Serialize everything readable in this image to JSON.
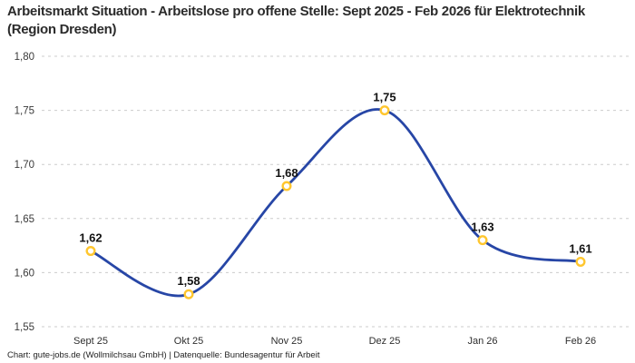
{
  "header": {
    "title": "Arbeitsmarkt Situation - Arbeitslose pro offene Stelle: Sept 2025 - Feb 2026 für Elektrotechnik (Region Dresden)"
  },
  "footer": {
    "text": "Chart: gute-jobs.de (Wollmilchsau GmbH) | Datenquelle: Bundesagentur für Arbeit"
  },
  "chart_data": {
    "type": "line",
    "title": "Arbeitsmarkt Situation - Arbeitslose pro offene Stelle: Sept 2025 - Feb 2026 für Elektrotechnik (Region Dresden)",
    "categories": [
      "Sept 25",
      "Okt 25",
      "Nov 25",
      "Dez 25",
      "Jan 26",
      "Feb 26"
    ],
    "values": [
      1.62,
      1.58,
      1.68,
      1.75,
      1.63,
      1.61
    ],
    "value_labels": [
      "1,62",
      "1,58",
      "1,68",
      "1,75",
      "1,63",
      "1,61"
    ],
    "xlabel": "",
    "ylabel": "",
    "ylim": [
      1.55,
      1.8
    ],
    "y_ticks": [
      1.8,
      1.75,
      1.7,
      1.65,
      1.6,
      1.55
    ],
    "y_tick_labels": [
      "1,80",
      "1,75",
      "1,70",
      "1,65",
      "1,60",
      "1,55"
    ],
    "grid": "horizontal-dashed",
    "legend": "none",
    "colors": {
      "line": "#2746a6",
      "marker_ring": "#ffc62e",
      "marker_fill": "#ffffff",
      "grid": "#cccccc",
      "tick_text": "#3a3a3a",
      "value_label_text": "#111111"
    }
  }
}
